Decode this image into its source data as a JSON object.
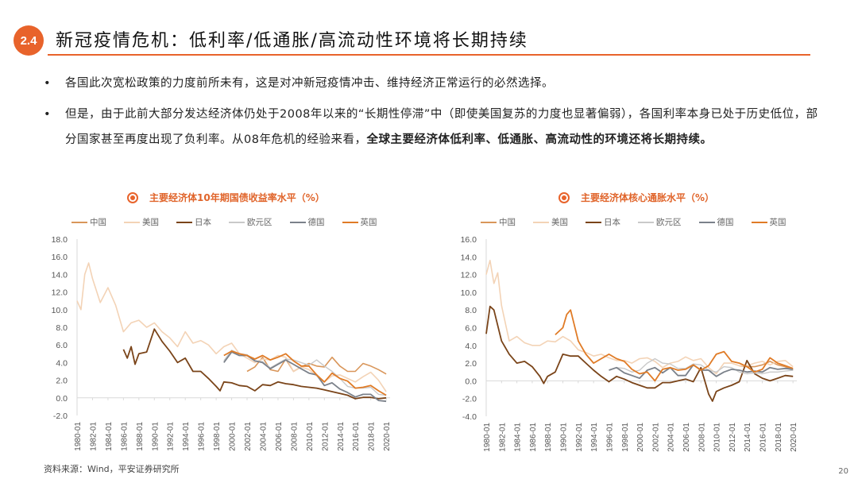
{
  "header": {
    "section": "2.4",
    "title": "新冠疫情危机：低利率/低通胀/高流动性环境将长期持续"
  },
  "bullets": [
    {
      "text": "各国此次宽松政策的力度前所未有，这是对冲新冠疫情冲击、维持经济正常运行的必然选择。",
      "bold": ""
    },
    {
      "text": "但是，由于此前大部分发达经济体仍处于2008年以来的“长期性停滞”中（即使美国复苏的力度也显著偏弱），各国利率本身已处于历史低位，部分国家甚至再度出现了负利率。从08年危机的经验来看，",
      "bold": "全球主要经济体低利率、低通胀、高流动性的环境还将长期持续。"
    }
  ],
  "bullet_symbol": "•",
  "source": "资料来源：Wind，平安证券研究所",
  "page_number": "20",
  "colors": {
    "accent": "#e8632b",
    "中国": "#d9965a",
    "美国": "#f3d3b6",
    "日本": "#7a4419",
    "欧元区": "#c9c9c9",
    "德国": "#7b818a",
    "英国": "#e07b26"
  },
  "chart_data": [
    {
      "type": "line",
      "title": "主要经济体10年期国债收益率水平（%）",
      "xlabel": "",
      "ylabel": "",
      "ylim": [
        -2,
        18
      ],
      "yticks": [
        "18.0",
        "16.0",
        "14.0",
        "12.0",
        "10.0",
        "8.0",
        "6.0",
        "4.0",
        "2.0",
        "0.0",
        "-2.0"
      ],
      "xlim": [
        1980,
        2020.5
      ],
      "xticks": [
        "1980-01",
        "1982-01",
        "1984-01",
        "1986-01",
        "1988-01",
        "1990-01",
        "1992-01",
        "1994-01",
        "1996-01",
        "1998-01",
        "2000-01",
        "2002-01",
        "2004-01",
        "2006-01",
        "2008-01",
        "2010-01",
        "2012-01",
        "2014-01",
        "2016-01",
        "2018-01",
        "2020-01"
      ],
      "legend": "top",
      "series": [
        {
          "name": "中国",
          "x": [
            2002,
            2003,
            2004,
            2005,
            2006,
            2007,
            2008,
            2009,
            2010,
            2011,
            2012,
            2013,
            2014,
            2015,
            2016,
            2017,
            2018,
            2019,
            2020
          ],
          "y": [
            3.0,
            3.5,
            4.6,
            3.2,
            3.0,
            4.4,
            3.0,
            3.5,
            3.9,
            3.6,
            3.5,
            4.6,
            3.6,
            3.0,
            3.0,
            3.9,
            3.6,
            3.2,
            2.7
          ]
        },
        {
          "name": "美国",
          "x": [
            1980,
            1980.5,
            1981,
            1981.5,
            1982,
            1983,
            1984,
            1985,
            1986,
            1987,
            1988,
            1989,
            1990,
            1991,
            1992,
            1993,
            1994,
            1995,
            1996,
            1997,
            1998,
            1999,
            2000,
            2001,
            2002,
            2003,
            2004,
            2005,
            2006,
            2007,
            2008,
            2009,
            2010,
            2011,
            2012,
            2013,
            2014,
            2015,
            2016,
            2017,
            2018,
            2019,
            2020
          ],
          "y": [
            11,
            10,
            14,
            15.3,
            13.5,
            10.8,
            12.5,
            10.5,
            7.5,
            8.5,
            8.8,
            8.0,
            8.5,
            7.5,
            6.8,
            5.8,
            7.5,
            6.2,
            6.5,
            6.0,
            5.0,
            5.8,
            6.2,
            5.0,
            4.5,
            4.0,
            4.4,
            4.3,
            4.8,
            4.6,
            3.0,
            3.5,
            3.2,
            2.5,
            1.8,
            2.5,
            2.6,
            2.2,
            1.8,
            2.4,
            2.9,
            2.0,
            0.7
          ]
        },
        {
          "name": "日本",
          "x": [
            1986,
            1986.5,
            1987,
            1987.5,
            1988,
            1989,
            1990,
            1991,
            1992,
            1993,
            1994,
            1995,
            1996,
            1997,
            1998,
            1998.5,
            1999,
            2000,
            2001,
            2002,
            2003,
            2004,
            2005,
            2006,
            2007,
            2008,
            2009,
            2010,
            2011,
            2012,
            2013,
            2014,
            2015,
            2016,
            2017,
            2018,
            2019,
            2020
          ],
          "y": [
            5.5,
            4.5,
            5.8,
            3.8,
            5.0,
            5.2,
            7.8,
            6.4,
            5.3,
            4.0,
            4.5,
            3.0,
            3.0,
            2.2,
            1.3,
            0.8,
            1.8,
            1.7,
            1.4,
            1.3,
            0.8,
            1.5,
            1.4,
            1.8,
            1.6,
            1.5,
            1.3,
            1.2,
            1.1,
            0.9,
            0.7,
            0.5,
            0.3,
            -0.1,
            0.05,
            0.05,
            -0.1,
            0.0
          ]
        },
        {
          "name": "欧元区",
          "x": [
            1999,
            2000,
            2001,
            2002,
            2003,
            2004,
            2005,
            2006,
            2007,
            2008,
            2009,
            2010,
            2011,
            2012,
            2013,
            2014,
            2015,
            2016,
            2017,
            2018,
            2019,
            2020
          ],
          "y": [
            4.2,
            5.4,
            5.0,
            4.9,
            4.2,
            4.1,
            3.4,
            3.9,
            4.4,
            4.3,
            4.0,
            3.7,
            4.3,
            3.6,
            3.0,
            2.2,
            1.3,
            1.1,
            1.1,
            1.2,
            0.4,
            0.3
          ]
        },
        {
          "name": "德国",
          "x": [
            1999,
            2000,
            2001,
            2002,
            2003,
            2004,
            2005,
            2006,
            2007,
            2008,
            2009,
            2010,
            2011,
            2012,
            2013,
            2014,
            2015,
            2016,
            2017,
            2018,
            2019,
            2020
          ],
          "y": [
            4.0,
            5.2,
            4.8,
            4.8,
            4.2,
            4.0,
            3.3,
            3.8,
            4.3,
            3.8,
            3.3,
            2.8,
            2.6,
            1.4,
            1.7,
            1.0,
            0.6,
            0.1,
            0.4,
            0.4,
            -0.3,
            -0.4
          ]
        },
        {
          "name": "英国",
          "x": [
            1999,
            2000,
            2001,
            2002,
            2003,
            2004,
            2005,
            2006,
            2007,
            2008,
            2009,
            2010,
            2011,
            2012,
            2013,
            2014,
            2015,
            2016,
            2017,
            2018,
            2019,
            2020
          ],
          "y": [
            4.8,
            5.3,
            5.0,
            4.8,
            4.4,
            4.8,
            4.3,
            4.6,
            5.0,
            4.2,
            3.6,
            3.6,
            2.6,
            1.8,
            2.8,
            2.2,
            1.9,
            1.1,
            1.2,
            1.4,
            0.8,
            0.3
          ]
        }
      ]
    },
    {
      "type": "line",
      "title": "主要经济体核心通胀水平（%）",
      "xlabel": "",
      "ylabel": "",
      "ylim": [
        -4,
        16
      ],
      "yticks": [
        "16.0",
        "14.0",
        "12.0",
        "10.0",
        "8.0",
        "6.0",
        "4.0",
        "2.0",
        "0.0",
        "-2.0",
        "-4.0"
      ],
      "xlim": [
        1980,
        2020.5
      ],
      "xticks": [
        "1980-01",
        "1982-01",
        "1984-01",
        "1986-01",
        "1988-01",
        "1990-01",
        "1992-01",
        "1994-01",
        "1996-01",
        "1998-01",
        "2000-01",
        "2002-01",
        "2004-01",
        "2006-01",
        "2008-01",
        "2010-01",
        "2012-01",
        "2014-01",
        "2016-01",
        "2018-01",
        "2020-01"
      ],
      "legend": "top",
      "series": [
        {
          "name": "中国",
          "x": [
            2013,
            2014,
            2015,
            2016,
            2017,
            2018,
            2019,
            2020
          ],
          "y": [
            1.7,
            1.6,
            1.6,
            1.8,
            2.2,
            1.8,
            1.6,
            1.2
          ]
        },
        {
          "name": "美国",
          "x": [
            1980,
            1980.5,
            1981,
            1981.5,
            1982,
            1983,
            1984,
            1985,
            1986,
            1987,
            1988,
            1989,
            1990,
            1991,
            1992,
            1993,
            1994,
            1995,
            1996,
            1997,
            1998,
            1999,
            2000,
            2001,
            2002,
            2003,
            2004,
            2005,
            2006,
            2007,
            2008,
            2009,
            2010,
            2011,
            2012,
            2013,
            2014,
            2015,
            2016,
            2017,
            2018,
            2019,
            2020
          ],
          "y": [
            12,
            13.6,
            11,
            12.2,
            8.5,
            4.5,
            5.0,
            4.3,
            4.0,
            4.0,
            4.5,
            4.4,
            5.0,
            4.5,
            3.5,
            3.2,
            2.8,
            3.0,
            2.6,
            2.3,
            2.3,
            2.0,
            2.5,
            2.6,
            2.2,
            1.5,
            2.0,
            2.2,
            2.7,
            2.3,
            2.5,
            1.5,
            0.8,
            2.0,
            2.0,
            1.7,
            1.7,
            2.0,
            2.2,
            1.8,
            2.2,
            2.3,
            1.6
          ]
        },
        {
          "name": "日本",
          "x": [
            1980,
            1980.5,
            1981,
            1982,
            1983,
            1984,
            1985,
            1986,
            1987,
            1987.5,
            1988,
            1989,
            1990,
            1991,
            1992,
            1993,
            1994,
            1995,
            1996,
            1997,
            1998,
            1999,
            2000,
            2001,
            2002,
            2003,
            2004,
            2005,
            2006,
            2007,
            2008,
            2009,
            2009.5,
            2010,
            2011,
            2012,
            2013,
            2014,
            2015,
            2016,
            2017,
            2018,
            2019,
            2020
          ],
          "y": [
            5.3,
            8.4,
            8.0,
            4.5,
            3.0,
            2.0,
            2.2,
            1.6,
            0.5,
            -0.3,
            0.5,
            1.0,
            3.0,
            2.8,
            2.8,
            2.0,
            1.2,
            0.5,
            -0.1,
            0.5,
            0.2,
            -0.2,
            -0.5,
            -0.8,
            -0.8,
            -0.2,
            -0.2,
            0.0,
            0.2,
            -0.1,
            1.5,
            -1.5,
            -2.3,
            -1.2,
            -0.8,
            -0.5,
            -0.1,
            2.3,
            0.8,
            0.3,
            0.0,
            0.3,
            0.6,
            0.5
          ]
        },
        {
          "name": "欧元区",
          "x": [
            1997,
            1998,
            1999,
            2000,
            2001,
            2002,
            2003,
            2004,
            2005,
            2006,
            2007,
            2008,
            2009,
            2010,
            2011,
            2012,
            2013,
            2014,
            2015,
            2016,
            2017,
            2018,
            2019,
            2020
          ],
          "y": [
            1.5,
            1.4,
            1.0,
            1.2,
            2.0,
            2.5,
            2.0,
            1.9,
            1.4,
            1.4,
            1.9,
            1.8,
            1.2,
            1.0,
            1.6,
            1.5,
            1.0,
            0.8,
            0.9,
            0.8,
            1.0,
            1.0,
            1.1,
            1.2
          ]
        },
        {
          "name": "德国",
          "x": [
            1996,
            1997,
            1998,
            1999,
            2000,
            2001,
            2002,
            2003,
            2004,
            2005,
            2006,
            2007,
            2008,
            2009,
            2010,
            2011,
            2012,
            2013,
            2014,
            2015,
            2016,
            2017,
            2018,
            2019,
            2020
          ],
          "y": [
            1.2,
            1.5,
            0.9,
            0.6,
            0.3,
            1.2,
            1.5,
            0.9,
            1.5,
            0.6,
            0.6,
            1.8,
            1.2,
            1.2,
            0.5,
            1.0,
            1.3,
            1.2,
            1.0,
            1.1,
            1.0,
            1.5,
            1.3,
            1.4,
            1.3
          ]
        },
        {
          "name": "英国",
          "x": [
            1989,
            1990,
            1990.5,
            1991,
            1992,
            1993,
            1994,
            1995,
            1996,
            1997,
            1998,
            1999,
            2000,
            2001,
            2002,
            2003,
            2004,
            2005,
            2006,
            2007,
            2008,
            2009,
            2010,
            2011,
            2012,
            2013,
            2014,
            2015,
            2016,
            2017,
            2018,
            2019,
            2020
          ],
          "y": [
            5.2,
            6.0,
            7.5,
            8.0,
            4.5,
            3.0,
            2.0,
            2.5,
            3.0,
            2.5,
            2.2,
            1.3,
            0.8,
            1.0,
            0.0,
            1.3,
            1.5,
            1.2,
            1.3,
            1.8,
            1.2,
            1.7,
            3.0,
            3.3,
            2.2,
            2.0,
            1.6,
            1.0,
            1.3,
            2.6,
            2.0,
            1.7,
            1.4
          ]
        }
      ]
    }
  ]
}
